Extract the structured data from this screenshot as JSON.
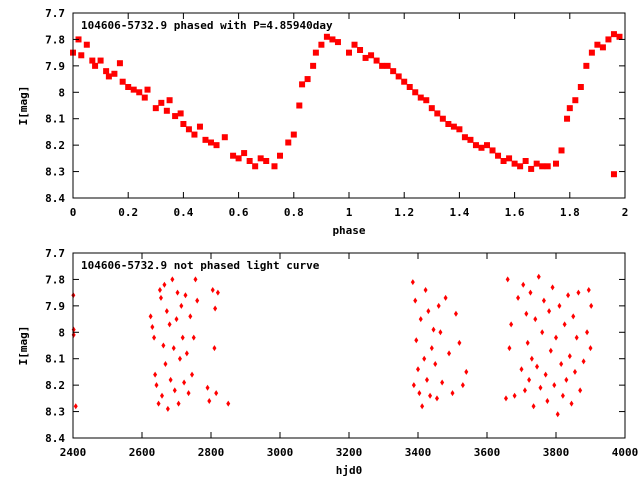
{
  "colors": {
    "points": "#ff0000",
    "axis": "#000000"
  },
  "chart_data": [
    {
      "type": "scatter",
      "title": "104606-5732.9 phased with P=4.85940day",
      "xlabel": "phase",
      "ylabel": "I[mag]",
      "xlim": [
        0,
        2
      ],
      "ylim": [
        7.7,
        8.4
      ],
      "y_inverted": true,
      "grid": false,
      "xticks": [
        0,
        0.2,
        0.4,
        0.6,
        0.8,
        1,
        1.2,
        1.4,
        1.6,
        1.8,
        2
      ],
      "xtick_labels": [
        "0",
        "0.2",
        "0.4",
        "0.6",
        "0.8",
        "1",
        "1.2",
        "1.4",
        "1.6",
        "1.8",
        "2"
      ],
      "yticks": [
        7.7,
        7.8,
        7.9,
        8,
        8.1,
        8.2,
        8.3,
        8.4
      ],
      "ytick_labels": [
        "7.7",
        "7.8",
        "7.9",
        "8",
        "8.1",
        "8.2",
        "8.3",
        "8.4"
      ],
      "marker": "square",
      "points": [
        [
          0.0,
          7.85
        ],
        [
          0.02,
          7.8
        ],
        [
          0.03,
          7.86
        ],
        [
          0.05,
          7.82
        ],
        [
          0.07,
          7.88
        ],
        [
          0.08,
          7.9
        ],
        [
          0.1,
          7.88
        ],
        [
          0.12,
          7.92
        ],
        [
          0.13,
          7.94
        ],
        [
          0.15,
          7.93
        ],
        [
          0.17,
          7.89
        ],
        [
          0.18,
          7.96
        ],
        [
          0.2,
          7.98
        ],
        [
          0.22,
          7.99
        ],
        [
          0.24,
          8.0
        ],
        [
          0.26,
          8.02
        ],
        [
          0.27,
          7.99
        ],
        [
          0.3,
          8.06
        ],
        [
          0.32,
          8.04
        ],
        [
          0.34,
          8.07
        ],
        [
          0.35,
          8.03
        ],
        [
          0.37,
          8.09
        ],
        [
          0.39,
          8.08
        ],
        [
          0.4,
          8.12
        ],
        [
          0.42,
          8.14
        ],
        [
          0.44,
          8.16
        ],
        [
          0.46,
          8.13
        ],
        [
          0.48,
          8.18
        ],
        [
          0.5,
          8.19
        ],
        [
          0.52,
          8.2
        ],
        [
          0.55,
          8.17
        ],
        [
          0.58,
          8.24
        ],
        [
          0.6,
          8.25
        ],
        [
          0.62,
          8.23
        ],
        [
          0.64,
          8.26
        ],
        [
          0.66,
          8.28
        ],
        [
          0.68,
          8.25
        ],
        [
          0.7,
          8.26
        ],
        [
          0.73,
          8.28
        ],
        [
          0.75,
          8.24
        ],
        [
          0.78,
          8.19
        ],
        [
          0.8,
          8.16
        ],
        [
          0.82,
          8.05
        ],
        [
          0.83,
          7.97
        ],
        [
          0.85,
          7.95
        ],
        [
          0.87,
          7.9
        ],
        [
          0.88,
          7.85
        ],
        [
          0.9,
          7.82
        ],
        [
          0.92,
          7.79
        ],
        [
          0.94,
          7.8
        ],
        [
          0.96,
          7.81
        ],
        [
          1.0,
          7.85
        ],
        [
          1.02,
          7.82
        ],
        [
          1.04,
          7.84
        ],
        [
          1.06,
          7.87
        ],
        [
          1.08,
          7.86
        ],
        [
          1.1,
          7.88
        ],
        [
          1.12,
          7.9
        ],
        [
          1.14,
          7.9
        ],
        [
          1.16,
          7.92
        ],
        [
          1.18,
          7.94
        ],
        [
          1.2,
          7.96
        ],
        [
          1.22,
          7.98
        ],
        [
          1.24,
          8.0
        ],
        [
          1.26,
          8.02
        ],
        [
          1.28,
          8.03
        ],
        [
          1.3,
          8.06
        ],
        [
          1.32,
          8.08
        ],
        [
          1.34,
          8.1
        ],
        [
          1.36,
          8.12
        ],
        [
          1.38,
          8.13
        ],
        [
          1.4,
          8.14
        ],
        [
          1.42,
          8.17
        ],
        [
          1.44,
          8.18
        ],
        [
          1.46,
          8.2
        ],
        [
          1.48,
          8.21
        ],
        [
          1.5,
          8.2
        ],
        [
          1.52,
          8.22
        ],
        [
          1.54,
          8.24
        ],
        [
          1.56,
          8.26
        ],
        [
          1.58,
          8.25
        ],
        [
          1.6,
          8.27
        ],
        [
          1.62,
          8.28
        ],
        [
          1.64,
          8.26
        ],
        [
          1.66,
          8.29
        ],
        [
          1.68,
          8.27
        ],
        [
          1.7,
          8.28
        ],
        [
          1.72,
          8.28
        ],
        [
          1.75,
          8.27
        ],
        [
          1.77,
          8.22
        ],
        [
          1.79,
          8.1
        ],
        [
          1.8,
          8.06
        ],
        [
          1.82,
          8.03
        ],
        [
          1.84,
          7.98
        ],
        [
          1.86,
          7.9
        ],
        [
          1.88,
          7.85
        ],
        [
          1.9,
          7.82
        ],
        [
          1.92,
          7.83
        ],
        [
          1.94,
          7.8
        ],
        [
          1.96,
          7.78
        ],
        [
          1.98,
          7.79
        ],
        [
          1.96,
          8.31
        ]
      ]
    },
    {
      "type": "scatter",
      "title": "104606-5732.9 not phased light curve",
      "xlabel": "hjd0",
      "ylabel": "I[mag]",
      "xlim": [
        2400,
        4000
      ],
      "ylim": [
        7.7,
        8.4
      ],
      "y_inverted": true,
      "grid": false,
      "xticks": [
        2400,
        2600,
        2800,
        3000,
        3200,
        3400,
        3600,
        3800,
        4000
      ],
      "xtick_labels": [
        "2400",
        "2600",
        "2800",
        "3000",
        "3200",
        "3400",
        "3600",
        "3800",
        "4000"
      ],
      "yticks": [
        7.7,
        7.8,
        7.9,
        8,
        8.1,
        8.2,
        8.3,
        8.4
      ],
      "ytick_labels": [
        "7.7",
        "7.8",
        "7.9",
        "8",
        "8.1",
        "8.2",
        "8.3",
        "8.4"
      ],
      "marker": "diamond",
      "points": [
        [
          2401,
          7.86
        ],
        [
          2402,
          7.99
        ],
        [
          2402,
          8.01
        ],
        [
          2408,
          8.28
        ],
        [
          2625,
          7.94
        ],
        [
          2630,
          7.98
        ],
        [
          2635,
          8.02
        ],
        [
          2638,
          8.16
        ],
        [
          2642,
          8.2
        ],
        [
          2648,
          8.27
        ],
        [
          2652,
          7.84
        ],
        [
          2655,
          7.87
        ],
        [
          2658,
          8.24
        ],
        [
          2662,
          8.05
        ],
        [
          2665,
          7.82
        ],
        [
          2668,
          8.12
        ],
        [
          2672,
          7.92
        ],
        [
          2675,
          8.29
        ],
        [
          2680,
          7.97
        ],
        [
          2683,
          8.18
        ],
        [
          2688,
          7.8
        ],
        [
          2692,
          8.06
        ],
        [
          2695,
          8.22
        ],
        [
          2700,
          7.95
        ],
        [
          2703,
          7.85
        ],
        [
          2706,
          8.27
        ],
        [
          2710,
          8.1
        ],
        [
          2714,
          7.9
        ],
        [
          2718,
          8.02
        ],
        [
          2722,
          8.19
        ],
        [
          2726,
          7.86
        ],
        [
          2730,
          8.08
        ],
        [
          2735,
          8.23
        ],
        [
          2740,
          7.94
        ],
        [
          2745,
          8.16
        ],
        [
          2750,
          8.02
        ],
        [
          2755,
          7.8
        ],
        [
          2760,
          7.88
        ],
        [
          2790,
          8.21
        ],
        [
          2795,
          8.26
        ],
        [
          2805,
          7.84
        ],
        [
          2810,
          8.06
        ],
        [
          2812,
          7.91
        ],
        [
          2815,
          8.23
        ],
        [
          2820,
          7.85
        ],
        [
          2850,
          8.27
        ],
        [
          3385,
          7.81
        ],
        [
          3388,
          8.2
        ],
        [
          3392,
          7.88
        ],
        [
          3395,
          8.03
        ],
        [
          3400,
          8.14
        ],
        [
          3404,
          8.23
        ],
        [
          3408,
          7.95
        ],
        [
          3412,
          8.28
        ],
        [
          3418,
          8.1
        ],
        [
          3422,
          7.84
        ],
        [
          3426,
          8.18
        ],
        [
          3430,
          7.92
        ],
        [
          3435,
          8.24
        ],
        [
          3440,
          8.06
        ],
        [
          3445,
          7.99
        ],
        [
          3450,
          8.12
        ],
        [
          3455,
          8.25
        ],
        [
          3460,
          7.9
        ],
        [
          3465,
          8.0
        ],
        [
          3470,
          8.19
        ],
        [
          3480,
          7.87
        ],
        [
          3490,
          8.08
        ],
        [
          3500,
          8.23
        ],
        [
          3510,
          7.93
        ],
        [
          3520,
          8.04
        ],
        [
          3530,
          8.2
        ],
        [
          3540,
          8.15
        ],
        [
          3655,
          8.25
        ],
        [
          3660,
          7.8
        ],
        [
          3665,
          8.06
        ],
        [
          3670,
          7.97
        ],
        [
          3680,
          8.24
        ],
        [
          3690,
          7.87
        ],
        [
          3700,
          8.14
        ],
        [
          3705,
          7.82
        ],
        [
          3710,
          8.22
        ],
        [
          3714,
          7.93
        ],
        [
          3718,
          8.04
        ],
        [
          3722,
          8.18
        ],
        [
          3726,
          7.85
        ],
        [
          3730,
          8.1
        ],
        [
          3735,
          8.28
        ],
        [
          3740,
          7.95
        ],
        [
          3745,
          8.13
        ],
        [
          3750,
          7.79
        ],
        [
          3755,
          8.21
        ],
        [
          3760,
          8.0
        ],
        [
          3765,
          7.88
        ],
        [
          3770,
          8.16
        ],
        [
          3775,
          8.26
        ],
        [
          3780,
          7.92
        ],
        [
          3785,
          8.07
        ],
        [
          3790,
          7.83
        ],
        [
          3795,
          8.2
        ],
        [
          3800,
          8.02
        ],
        [
          3805,
          8.31
        ],
        [
          3810,
          7.9
        ],
        [
          3815,
          8.12
        ],
        [
          3820,
          8.24
        ],
        [
          3825,
          7.97
        ],
        [
          3830,
          8.18
        ],
        [
          3835,
          7.86
        ],
        [
          3840,
          8.09
        ],
        [
          3845,
          8.27
        ],
        [
          3850,
          7.94
        ],
        [
          3855,
          8.15
        ],
        [
          3860,
          8.02
        ],
        [
          3865,
          7.85
        ],
        [
          3870,
          8.22
        ],
        [
          3880,
          8.11
        ],
        [
          3890,
          8.0
        ],
        [
          3895,
          7.84
        ],
        [
          3900,
          8.06
        ],
        [
          3902,
          7.9
        ]
      ]
    }
  ]
}
